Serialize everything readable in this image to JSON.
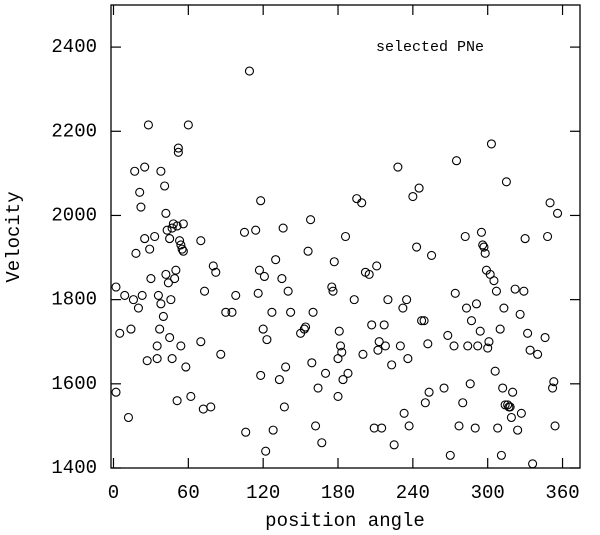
{
  "chart_data": {
    "type": "scatter",
    "annotation": "selected PNe",
    "x_label": "position angle",
    "y_label": "Velocity",
    "xlim": [
      -2,
      374
    ],
    "ylim": [
      1400,
      2500
    ],
    "xticks": [
      0,
      60,
      120,
      180,
      240,
      300,
      360
    ],
    "yticks": [
      1400,
      1600,
      1800,
      2000,
      2200,
      2400
    ],
    "color": "#000000",
    "x": [
      2,
      2,
      5,
      9,
      12,
      14,
      16,
      17,
      18,
      20,
      21,
      22,
      23,
      25,
      25,
      27,
      28,
      29,
      30,
      33,
      35,
      35,
      36,
      37,
      38,
      38,
      40,
      41,
      42,
      42,
      43,
      44,
      45,
      45,
      46,
      47,
      47,
      48,
      49,
      50,
      51,
      51,
      52,
      52,
      53,
      54,
      54,
      55,
      56,
      56,
      58,
      60,
      62,
      70,
      70,
      72,
      73,
      78,
      80,
      82,
      86,
      90,
      95,
      98,
      105,
      106,
      109,
      114,
      116,
      117,
      118,
      118,
      120,
      121,
      122,
      123,
      127,
      128,
      130,
      133,
      135,
      136,
      137,
      138,
      140,
      142,
      150,
      153,
      154,
      156,
      158,
      159,
      160,
      162,
      164,
      167,
      170,
      175,
      176,
      177,
      180,
      180,
      181,
      182,
      183,
      184,
      186,
      188,
      193,
      195,
      199,
      200,
      202,
      205,
      207,
      209,
      211,
      212,
      213,
      215,
      217,
      218,
      220,
      223,
      225,
      228,
      230,
      232,
      233,
      235,
      236,
      237,
      240,
      243,
      245,
      247,
      249,
      250,
      252,
      253,
      255,
      265,
      268,
      270,
      273,
      274,
      275,
      277,
      280,
      282,
      283,
      284,
      286,
      287,
      290,
      291,
      292,
      294,
      295,
      296,
      297,
      298,
      299,
      300,
      301,
      302,
      303,
      305,
      306,
      307,
      308,
      310,
      311,
      312,
      313,
      314,
      315,
      316,
      317,
      318,
      319,
      320,
      322,
      324,
      326,
      327,
      329,
      330,
      332,
      334,
      336,
      340,
      346,
      348,
      350,
      352,
      353,
      354,
      356
    ],
    "values": [
      1830,
      1580,
      1720,
      1810,
      1520,
      1730,
      1800,
      2105,
      1910,
      1780,
      2055,
      2020,
      1810,
      2115,
      1945,
      1655,
      2215,
      1920,
      1850,
      1950,
      1690,
      1660,
      1810,
      1730,
      2105,
      1790,
      1760,
      2070,
      1860,
      2005,
      1965,
      1840,
      1710,
      1945,
      1800,
      1660,
      1970,
      1980,
      1850,
      1870,
      1560,
      1975,
      2160,
      2150,
      1940,
      1930,
      1690,
      1920,
      1980,
      1915,
      1640,
      2215,
      1570,
      1700,
      1940,
      1540,
      1820,
      1545,
      1880,
      1865,
      1670,
      1770,
      1770,
      1810,
      1960,
      1485,
      2343,
      1965,
      1815,
      1870,
      1620,
      2035,
      1730,
      1855,
      1440,
      1705,
      1770,
      1490,
      1895,
      1610,
      1850,
      1970,
      1545,
      1640,
      1820,
      1770,
      1720,
      1730,
      1735,
      1915,
      1990,
      1650,
      1770,
      1500,
      1590,
      1460,
      1625,
      1830,
      1820,
      1890,
      1570,
      1660,
      1725,
      1690,
      1675,
      1610,
      1950,
      1625,
      1800,
      2040,
      2030,
      1670,
      1865,
      1860,
      1740,
      1495,
      1880,
      1680,
      1700,
      1495,
      1740,
      1690,
      1800,
      1645,
      1455,
      2115,
      1690,
      1780,
      1530,
      1800,
      1660,
      1500,
      2045,
      1925,
      2065,
      1750,
      1750,
      1555,
      1695,
      1580,
      1905,
      1590,
      1715,
      1430,
      1690,
      1815,
      2130,
      1500,
      1555,
      1950,
      1780,
      1690,
      1600,
      1750,
      1495,
      1790,
      1690,
      1725,
      1960,
      1930,
      1925,
      1910,
      1870,
      1685,
      1700,
      1860,
      2170,
      1845,
      1630,
      1820,
      1495,
      1730,
      1430,
      1590,
      1780,
      1550,
      2080,
      1550,
      1545,
      1545,
      1520,
      1580,
      1825,
      1490,
      1765,
      1530,
      1820,
      1945,
      1720,
      1680,
      1410,
      1670,
      1710,
      1950,
      2030,
      1590,
      1605,
      1500,
      2005
    ]
  }
}
